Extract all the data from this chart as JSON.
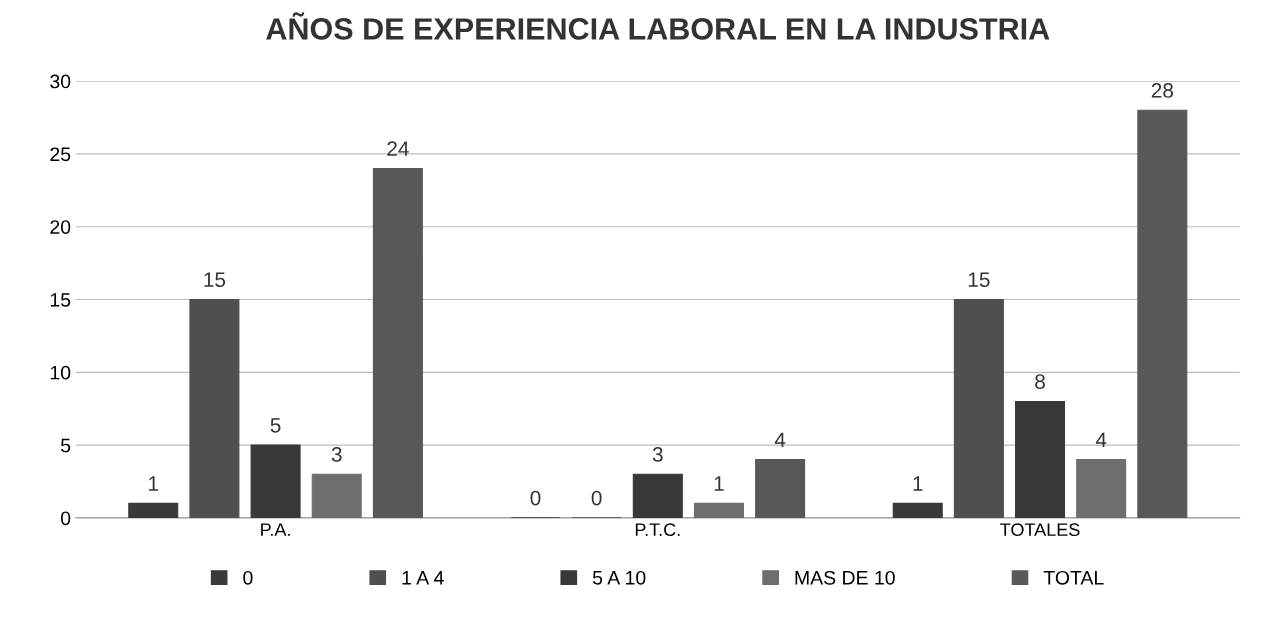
{
  "chart_data": {
    "type": "bar",
    "title": "AÑOS DE EXPERIENCIA LABORAL EN LA INDUSTRIA",
    "categories": [
      "P.A.",
      "P.T.C.",
      "TOTALES"
    ],
    "series": [
      {
        "name": "0",
        "color": "#3a3a3a",
        "values": [
          1,
          0,
          1
        ]
      },
      {
        "name": "1 A 4",
        "color": "#4f4f4f",
        "values": [
          15,
          0,
          15
        ]
      },
      {
        "name": "5 A 10",
        "color": "#383838",
        "values": [
          5,
          3,
          8
        ]
      },
      {
        "name": "MAS DE 10",
        "color": "#6e6e6e",
        "values": [
          3,
          1,
          4
        ]
      },
      {
        "name": "TOTAL",
        "color": "#585858",
        "values": [
          24,
          4,
          28
        ]
      }
    ],
    "ylim": [
      0,
      30
    ],
    "yticks": [
      0,
      5,
      10,
      15,
      20,
      25,
      30
    ],
    "grid": "y",
    "legend": "bottom",
    "data_labels": true
  }
}
